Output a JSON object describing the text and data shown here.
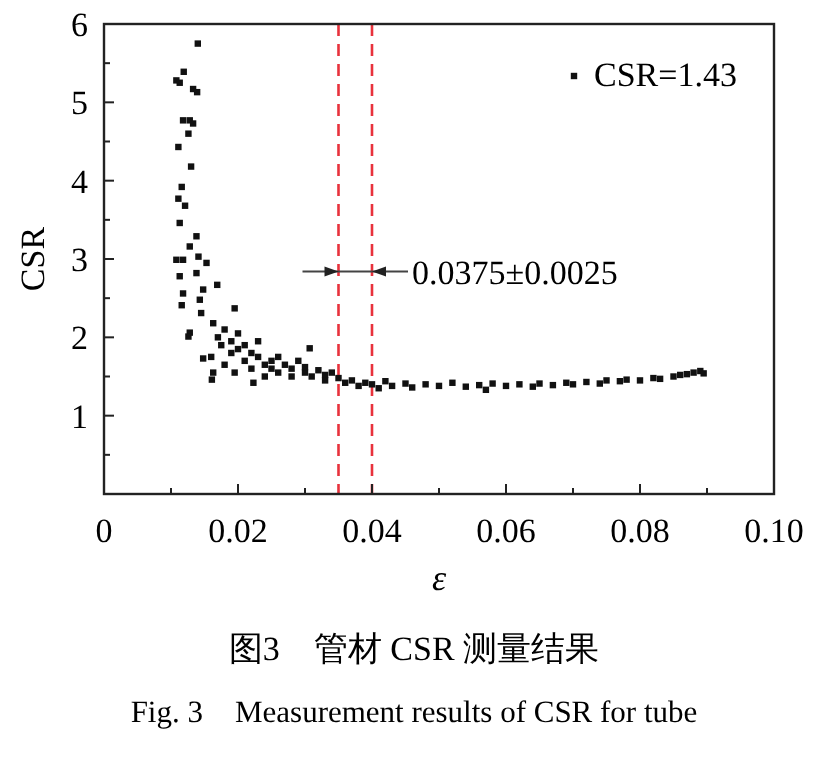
{
  "chart_data": {
    "type": "scatter",
    "title": "图3　管材 CSR 测量结果",
    "subtitle": "Fig. 3　Measurement results of CSR for tube",
    "xlabel": "ε",
    "ylabel": "CSR",
    "xlim": [
      0,
      0.1
    ],
    "ylim": [
      0,
      6
    ],
    "xticks": [
      0,
      0.02,
      0.04,
      0.06,
      0.08,
      {
        "value": 0.1,
        "label": "0.10"
      }
    ],
    "yticks": [
      1,
      2,
      3,
      4,
      5,
      6
    ],
    "marker": "square",
    "legend": "top right",
    "grid": false,
    "ref_lines": [
      {
        "axis": "x",
        "value": 0.035,
        "color": "#e8323c",
        "line_style": "dashed"
      },
      {
        "axis": "x",
        "value": 0.04,
        "color": "#e8323c",
        "line_style": "dashed"
      }
    ],
    "annotations": [
      {
        "text": "0.0375±0.0025",
        "x": 0.04,
        "y": 2.84
      }
    ],
    "series": [
      {
        "name": "CSR=1.43",
        "color": "#111111",
        "x": [
          0.014,
          0.0119,
          0.0108,
          0.0113,
          0.0133,
          0.0139,
          0.0118,
          0.0128,
          0.0133,
          0.0126,
          0.0111,
          0.013,
          0.0116,
          0.0111,
          0.0121,
          0.0113,
          0.0138,
          0.0128,
          0.0141,
          0.0108,
          0.0118,
          0.0113,
          0.0138,
          0.0153,
          0.0118,
          0.0148,
          0.0143,
          0.0169,
          0.0116,
          0.0145,
          0.0128,
          0.0163,
          0.0195,
          0.0161,
          0.0163,
          0.0223,
          0.0307,
          0.0126,
          0.0148,
          0.016,
          0.017,
          0.0175,
          0.018,
          0.018,
          0.019,
          0.019,
          0.0195,
          0.02,
          0.02,
          0.021,
          0.021,
          0.022,
          0.022,
          0.023,
          0.023,
          0.024,
          0.024,
          0.025,
          0.025,
          0.026,
          0.026,
          0.027,
          0.028,
          0.028,
          0.029,
          0.03,
          0.03,
          0.031,
          0.032,
          0.033,
          0.033,
          0.034,
          0.035,
          0.036,
          0.037,
          0.038,
          0.039,
          0.04,
          0.041,
          0.042,
          0.043,
          0.045,
          0.046,
          0.048,
          0.05,
          0.052,
          0.054,
          0.056,
          0.057,
          0.058,
          0.06,
          0.062,
          0.064,
          0.065,
          0.067,
          0.069,
          0.07,
          0.072,
          0.074,
          0.075,
          0.077,
          0.078,
          0.08,
          0.082,
          0.083,
          0.085,
          0.086,
          0.087,
          0.088,
          0.089,
          0.0895
        ],
        "values": [
          5.75,
          5.39,
          5.28,
          5.25,
          5.17,
          5.13,
          4.77,
          4.77,
          4.73,
          4.6,
          4.43,
          4.18,
          3.92,
          3.77,
          3.68,
          3.46,
          3.29,
          3.16,
          3.03,
          2.99,
          2.99,
          2.78,
          2.82,
          2.95,
          2.56,
          2.61,
          2.48,
          2.67,
          2.41,
          2.31,
          2.06,
          2.18,
          2.37,
          1.46,
          1.55,
          1.42,
          1.86,
          2.01,
          1.73,
          1.75,
          2.0,
          1.9,
          2.1,
          1.65,
          1.95,
          1.8,
          1.55,
          1.85,
          2.05,
          1.9,
          1.7,
          1.8,
          1.6,
          1.75,
          1.95,
          1.65,
          1.5,
          1.7,
          1.6,
          1.75,
          1.55,
          1.65,
          1.6,
          1.5,
          1.7,
          1.55,
          1.62,
          1.5,
          1.58,
          1.52,
          1.45,
          1.55,
          1.48,
          1.42,
          1.45,
          1.38,
          1.42,
          1.4,
          1.35,
          1.44,
          1.38,
          1.41,
          1.36,
          1.4,
          1.38,
          1.42,
          1.37,
          1.39,
          1.33,
          1.41,
          1.38,
          1.4,
          1.37,
          1.41,
          1.39,
          1.42,
          1.4,
          1.43,
          1.41,
          1.45,
          1.44,
          1.46,
          1.45,
          1.48,
          1.47,
          1.5,
          1.52,
          1.53,
          1.55,
          1.57,
          1.54
        ]
      }
    ]
  }
}
